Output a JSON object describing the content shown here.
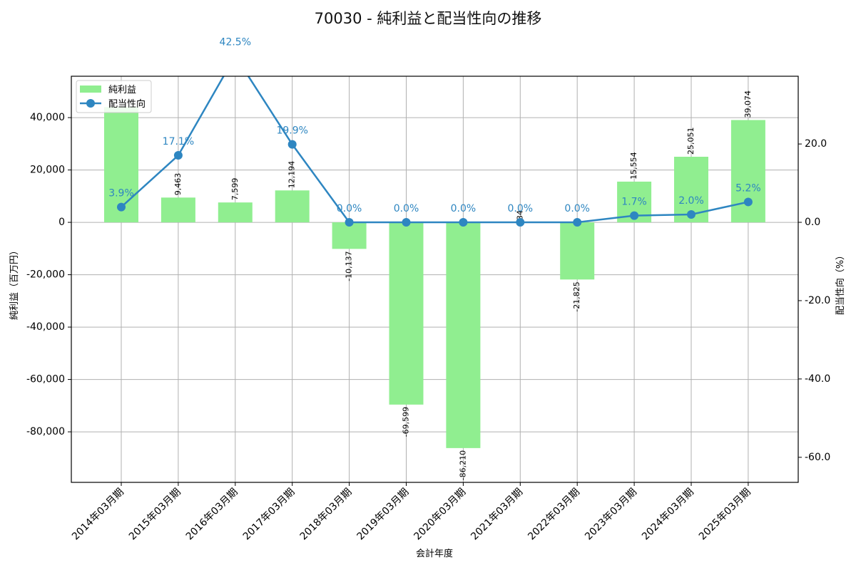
{
  "chart_data": {
    "type": "bar+line",
    "title": "70030 - 純利益と配当性向の推移",
    "xlabel": "会計年度",
    "ylabel_left": "純利益（百万円）",
    "ylabel_right": "配当性向（%）",
    "categories": [
      "2014年03月期",
      "2015年03月期",
      "2016年03月期",
      "2017年03月期",
      "2018年03月期",
      "2019年03月期",
      "2020年03月期",
      "2021年03月期",
      "2022年03月期",
      "2023年03月期",
      "2024年03月期",
      "2025年03月期"
    ],
    "series": [
      {
        "name": "純利益",
        "type": "bar",
        "axis": "left",
        "color": "#90ee90",
        "values": [
          44000,
          9463,
          7599,
          12194,
          -10137,
          -69599,
          -86210,
          34,
          -21825,
          15554,
          25051,
          39074
        ],
        "labels": [
          "",
          "9,463",
          "7,599",
          "12,194",
          "-10,137",
          "-69,599",
          "-86,210",
          "34",
          "-21,825",
          "15,554",
          "25,051",
          "39,074"
        ]
      },
      {
        "name": "配当性向",
        "type": "line",
        "axis": "right",
        "color": "#2e86c1",
        "values": [
          3.9,
          17.1,
          42.5,
          19.9,
          0.0,
          0.0,
          0.0,
          0.0,
          0.0,
          1.7,
          2.0,
          5.2
        ],
        "labels": [
          "3.9%",
          "17.1%",
          "42.5%",
          "19.9%",
          "0.0%",
          "0.0%",
          "0.0%",
          "0.0%",
          "0.0%",
          "1.7%",
          "2.0%",
          "5.2%"
        ]
      }
    ],
    "ylim_left": [
      -99300,
      55800
    ],
    "ylim_right": [
      -66.4,
      37.3
    ],
    "yticks_left": [
      40000,
      20000,
      0,
      -20000,
      -40000,
      -60000,
      -80000
    ],
    "yticks_left_labels": [
      "40,000",
      "20,000",
      "0",
      "-20,000",
      "-40,000",
      "-60,000",
      "-80,000"
    ],
    "yticks_right": [
      20,
      0,
      -20,
      -40,
      -60
    ],
    "yticks_right_labels": [
      "20.0",
      "0.0",
      "-20.0",
      "-40.0",
      "-60.0"
    ],
    "grid": true,
    "legend_position": "upper left",
    "legend": [
      "純利益",
      "配当性向"
    ]
  }
}
